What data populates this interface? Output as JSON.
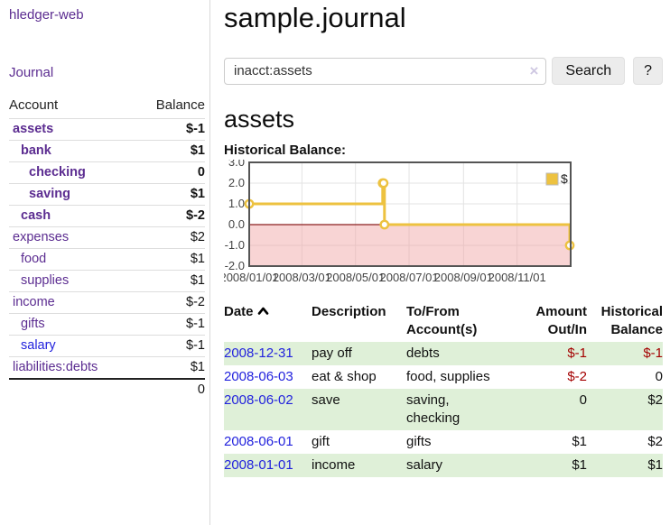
{
  "colors": {
    "link_purple": "#5c2d91",
    "link_blue": "#2222dd",
    "negative_strong": "#a40000",
    "negative_soft": "#bb6666",
    "row_green": "#dff0d8",
    "chart_line": "#edc240"
  },
  "sidebar": {
    "brand": "hledger-web",
    "journal_link": "Journal",
    "accounts": {
      "col_account": "Account",
      "col_balance": "Balance",
      "rows": [
        {
          "name": "assets",
          "level": 1,
          "bold": true,
          "balance": "$-1",
          "balance_style": "neg-strong"
        },
        {
          "name": "bank",
          "level": 2,
          "bold": true,
          "balance": "$1"
        },
        {
          "name": "checking",
          "level": 3,
          "bold": true,
          "balance": "0"
        },
        {
          "name": "saving",
          "level": 3,
          "bold": true,
          "balance": "$1"
        },
        {
          "name": "cash",
          "level": 2,
          "bold": true,
          "balance": "$-2",
          "balance_style": "neg-strong"
        },
        {
          "name": "expenses",
          "level": 1,
          "bold": false,
          "balance": "$2"
        },
        {
          "name": "food",
          "level": 2,
          "bold": false,
          "balance": "$1"
        },
        {
          "name": "supplies",
          "level": 2,
          "bold": false,
          "balance": "$1"
        },
        {
          "name": "income",
          "level": 1,
          "bold": false,
          "balance": "$-2",
          "balance_style": "neg-soft"
        },
        {
          "name": "gifts",
          "level": 2,
          "bold": false,
          "balance": "$-1",
          "balance_style": "neg-soft"
        },
        {
          "name": "salary",
          "level": 2,
          "bold": false,
          "balance": "$-1",
          "balance_style": "neg-soft",
          "link_color": "blue"
        },
        {
          "name": "liabilities:debts",
          "level": 1,
          "bold": false,
          "balance": "$1"
        }
      ],
      "total": "0"
    }
  },
  "main": {
    "title": "sample.journal",
    "search": {
      "value": "inacct:assets",
      "clear_icon": "×",
      "button_label": "Search",
      "help_label": "?"
    },
    "account_heading": "assets"
  },
  "chart_data": {
    "type": "line",
    "step": true,
    "title": "Historical Balance:",
    "series": [
      {
        "name": "$",
        "points": [
          [
            "2008-01-01",
            1
          ],
          [
            "2008-06-01",
            2
          ],
          [
            "2008-06-02",
            2
          ],
          [
            "2008-06-03",
            0
          ],
          [
            "2008-12-31",
            -1
          ]
        ]
      }
    ],
    "xlim": [
      "2008-01-01",
      "2009-01-01"
    ],
    "ylim": [
      -2,
      3
    ],
    "yticks": [
      3,
      2,
      1,
      0,
      -1,
      -2
    ],
    "ytick_labels": [
      "3.0",
      "2.0",
      "1.0",
      "0.0",
      "-1.0",
      "-2.0"
    ],
    "xtick_labels": [
      "2008/01/01",
      "2008/03/01",
      "2008/05/01",
      "2008/07/01",
      "2008/09/01",
      "2008/11/01"
    ],
    "legend_position": "top-right",
    "grid": true,
    "negative_region_shaded": true
  },
  "register": {
    "headers": {
      "date": "Date",
      "description": "Description",
      "account": "To/From Account(s)",
      "amount": "Amount Out/In",
      "balance": "Historical Balance"
    },
    "sort": {
      "column": "date",
      "direction": "ascending"
    },
    "rows": [
      {
        "date": "2008-12-31",
        "description": "pay off",
        "accounts": "debts",
        "amount": "$-1",
        "amount_neg": true,
        "balance": "$-1",
        "balance_neg": true
      },
      {
        "date": "2008-06-03",
        "description": "eat & shop",
        "accounts": "food, supplies",
        "amount": "$-2",
        "amount_neg": true,
        "balance": "0",
        "balance_neg": false
      },
      {
        "date": "2008-06-02",
        "description": "save",
        "accounts": "saving,\nchecking",
        "amount": "0",
        "amount_neg": false,
        "balance": "$2",
        "balance_neg": false
      },
      {
        "date": "2008-06-01",
        "description": "gift",
        "accounts": "gifts",
        "amount": "$1",
        "amount_neg": false,
        "balance": "$2",
        "balance_neg": false
      },
      {
        "date": "2008-01-01",
        "description": "income",
        "accounts": "salary",
        "amount": "$1",
        "amount_neg": false,
        "balance": "$1",
        "balance_neg": false
      }
    ]
  }
}
